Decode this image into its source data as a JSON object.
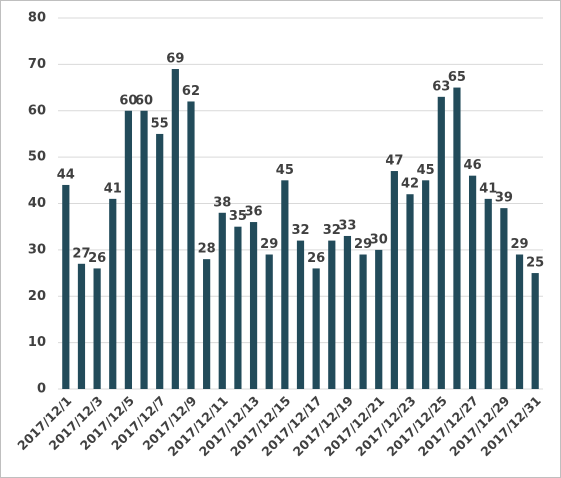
{
  "chart_data": {
    "type": "bar",
    "categories": [
      "2017/12/1",
      null,
      "2017/12/3",
      null,
      "2017/12/5",
      null,
      "2017/12/7",
      null,
      "2017/12/9",
      null,
      "2017/12/11",
      null,
      "2017/12/13",
      null,
      "2017/12/15",
      null,
      "2017/12/17",
      null,
      "2017/12/19",
      null,
      "2017/12/21",
      null,
      "2017/12/23",
      null,
      "2017/12/25",
      null,
      "2017/12/27",
      null,
      "2017/12/29",
      null,
      "2017/12/31"
    ],
    "values": [
      44,
      27,
      26,
      41,
      60,
      60,
      55,
      69,
      62,
      28,
      38,
      35,
      36,
      29,
      45,
      32,
      26,
      32,
      33,
      29,
      30,
      47,
      42,
      45,
      63,
      65,
      46,
      41,
      39,
      29,
      25
    ],
    "color": "#224b5a",
    "ylim": [
      0,
      80
    ],
    "yticks": [
      0,
      10,
      20,
      30,
      40,
      50,
      60,
      70,
      80
    ],
    "grid": true
  }
}
